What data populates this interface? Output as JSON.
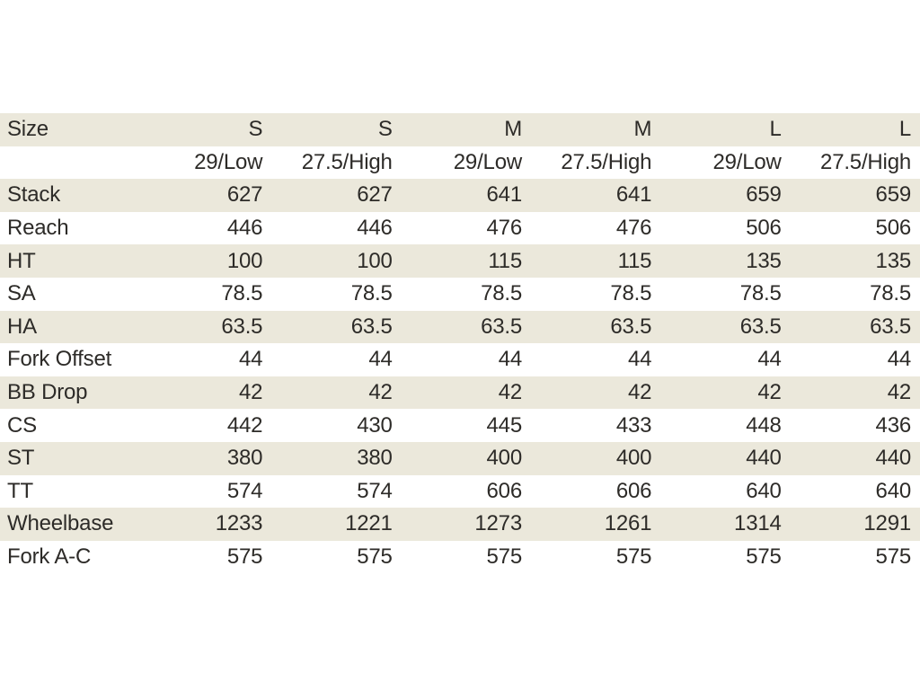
{
  "chart_data": {
    "type": "table",
    "title": "",
    "header_row": [
      "Size",
      "S",
      "S",
      "M",
      "M",
      "L",
      "L"
    ],
    "subheader_row": [
      "",
      "29/Low",
      "27.5/High",
      "29/Low",
      "27.5/High",
      "29/Low",
      "27.5/High"
    ],
    "row_labels": [
      "Stack",
      "Reach",
      "HT",
      "SA",
      "HA",
      "Fork Offset",
      "BB Drop",
      "CS",
      "ST",
      "TT",
      "Wheelbase",
      "Fork A-C"
    ],
    "rows": [
      [
        "Stack",
        627,
        627,
        641,
        641,
        659,
        659
      ],
      [
        "Reach",
        446,
        446,
        476,
        476,
        506,
        506
      ],
      [
        "HT",
        100,
        100,
        115,
        115,
        135,
        135
      ],
      [
        "SA",
        78.5,
        78.5,
        78.5,
        78.5,
        78.5,
        78.5
      ],
      [
        "HA",
        63.5,
        63.5,
        63.5,
        63.5,
        63.5,
        63.5
      ],
      [
        "Fork Offset",
        44,
        44,
        44,
        44,
        44,
        44
      ],
      [
        "BB Drop",
        42,
        42,
        42,
        42,
        42,
        42
      ],
      [
        "CS",
        442,
        430,
        445,
        433,
        448,
        436
      ],
      [
        "ST",
        380,
        380,
        400,
        400,
        440,
        440
      ],
      [
        "TT",
        574,
        574,
        606,
        606,
        640,
        640
      ],
      [
        "Wheelbase",
        1233,
        1221,
        1273,
        1261,
        1314,
        1291
      ],
      [
        "Fork A-C",
        575,
        575,
        575,
        575,
        575,
        575
      ]
    ],
    "layout_hints": {
      "stripe_rows": "header and alternating data rows",
      "value_alignment": "right",
      "label_alignment": "left"
    }
  },
  "colors": {
    "stripe": "#ebe8db",
    "text": "#2d2b28",
    "background": "#ffffff"
  }
}
